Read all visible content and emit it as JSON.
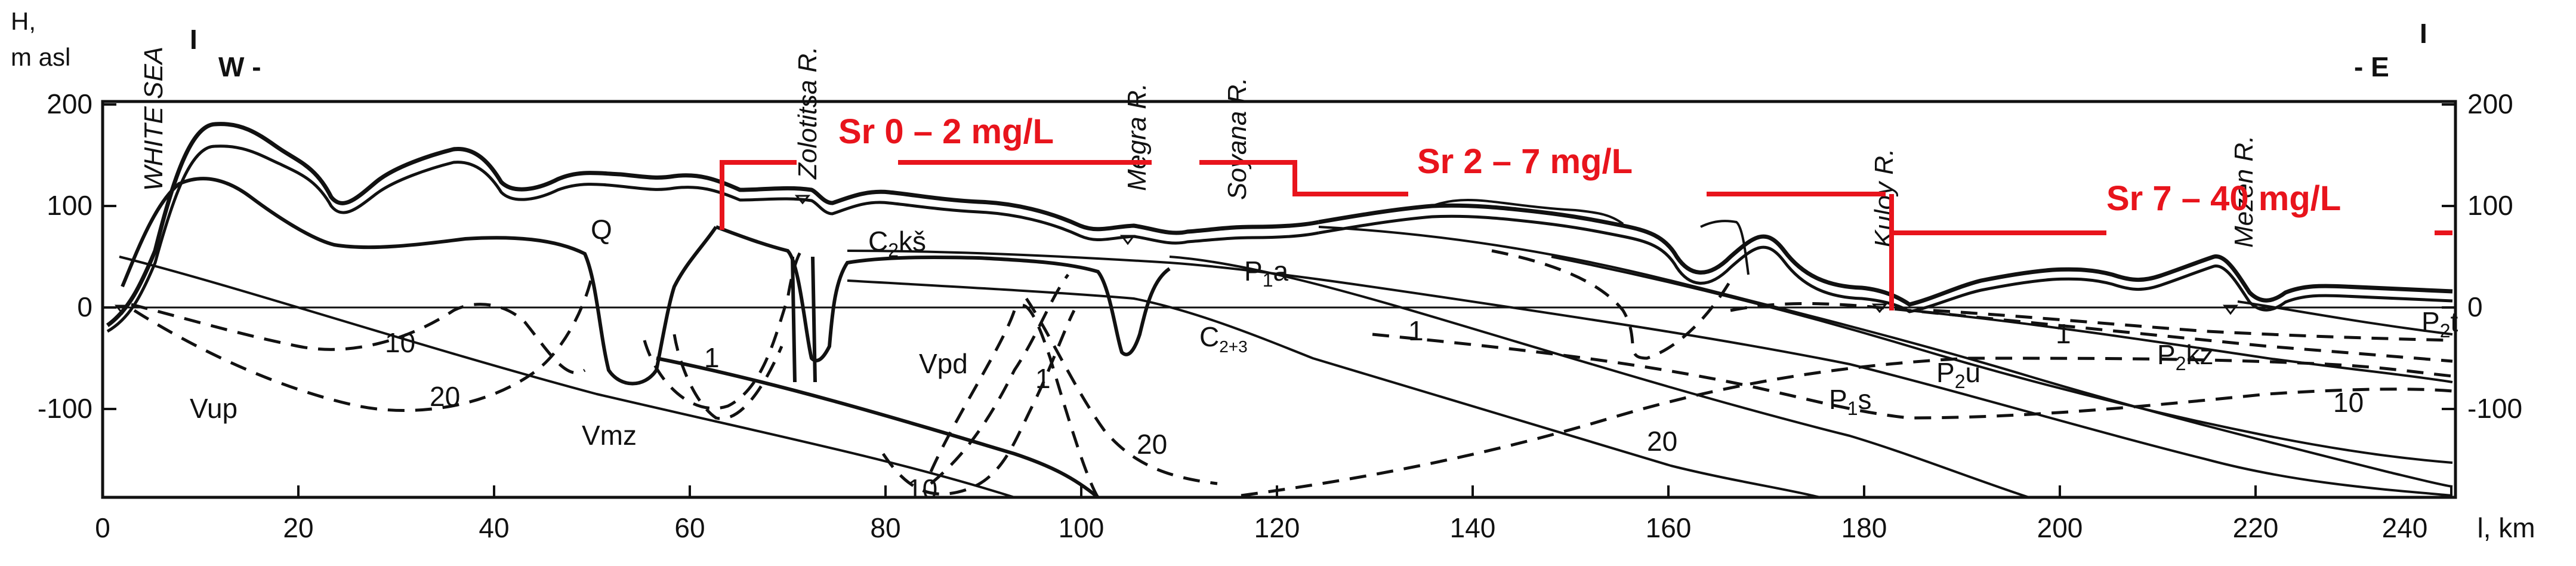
{
  "figure": {
    "y_axis_label_line1": "H,",
    "y_axis_label_line2": "m asl",
    "x_axis_label": "l, km",
    "x_ticks": [
      "0",
      "20",
      "40",
      "60",
      "80",
      "100",
      "120",
      "140",
      "160",
      "180",
      "200",
      "220",
      "240"
    ],
    "y_ticks_left": [
      "200",
      "100",
      "0",
      "-100"
    ],
    "y_ticks_right": [
      "200",
      "100",
      "0",
      "-100"
    ],
    "section_west": {
      "roman": "I",
      "dir": "W -"
    },
    "section_east": {
      "roman": "I",
      "dir": "- E"
    },
    "sea_label": "WHITE SEA",
    "rivers": [
      "Zolotitsa R.",
      "Megra R.",
      "Soyana  R.",
      "Kuloy  R.",
      "Mezen  R."
    ],
    "strata": {
      "q": "Q",
      "vup": "Vup",
      "vmz": "Vmz",
      "vpd": "Vpd",
      "c2ks_main": "C",
      "c2ks_sub": "2",
      "c2ks_tail": "kš",
      "c23_main": "C",
      "c23_sub": "2+3",
      "p1a_main": "P",
      "p1a_sub": "1",
      "p1a_tail": "a",
      "p1s_main": "P",
      "p1s_sub": "1",
      "p1s_tail": "s",
      "p2u_main": "P",
      "p2u_sub": "2",
      "p2u_tail": "u",
      "p2kz_main": "P",
      "p2kz_sub": "2",
      "p2kz_tail": "kz",
      "p2t_main": "P",
      "p2t_sub": "2",
      "p2t_tail": "t"
    },
    "isolines": {
      "w10": "10",
      "w20": "20",
      "w1": "1",
      "m1": "1",
      "m20": "20",
      "m10": "10",
      "c1": "1",
      "c20": "20",
      "e1": "1",
      "e10": "10"
    },
    "sr_zones": [
      "Sr 0 – 2 mg/L",
      "Sr 2 – 7 mg/L",
      "Sr 7 –  40 mg/L"
    ],
    "colors": {
      "sr": "#e8141c",
      "ink": "#111111"
    }
  }
}
